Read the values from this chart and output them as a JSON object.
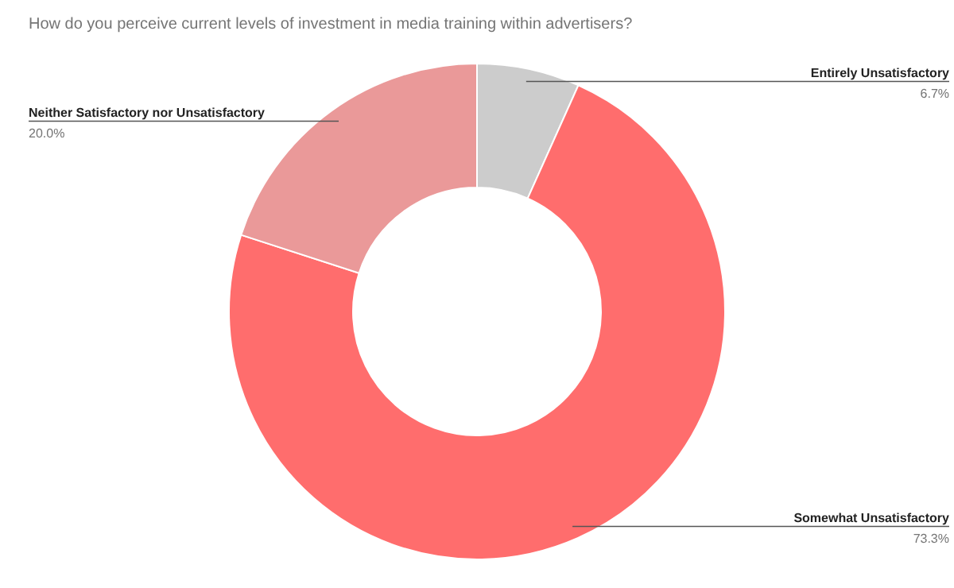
{
  "chart_data": {
    "type": "donut",
    "title": "How do you perceive current levels of investment in media training within advertisers?",
    "categories": [
      "Entirely Unsatisfactory",
      "Somewhat Unsatisfactory",
      "Neither Satisfactory nor Unsatisfactory"
    ],
    "values": [
      6.7,
      73.3,
      20.0
    ],
    "colors": [
      "#cccccc",
      "#ff6d6d",
      "#ea9999"
    ],
    "value_labels": [
      "6.7%",
      "73.3%",
      "20.0%"
    ]
  }
}
